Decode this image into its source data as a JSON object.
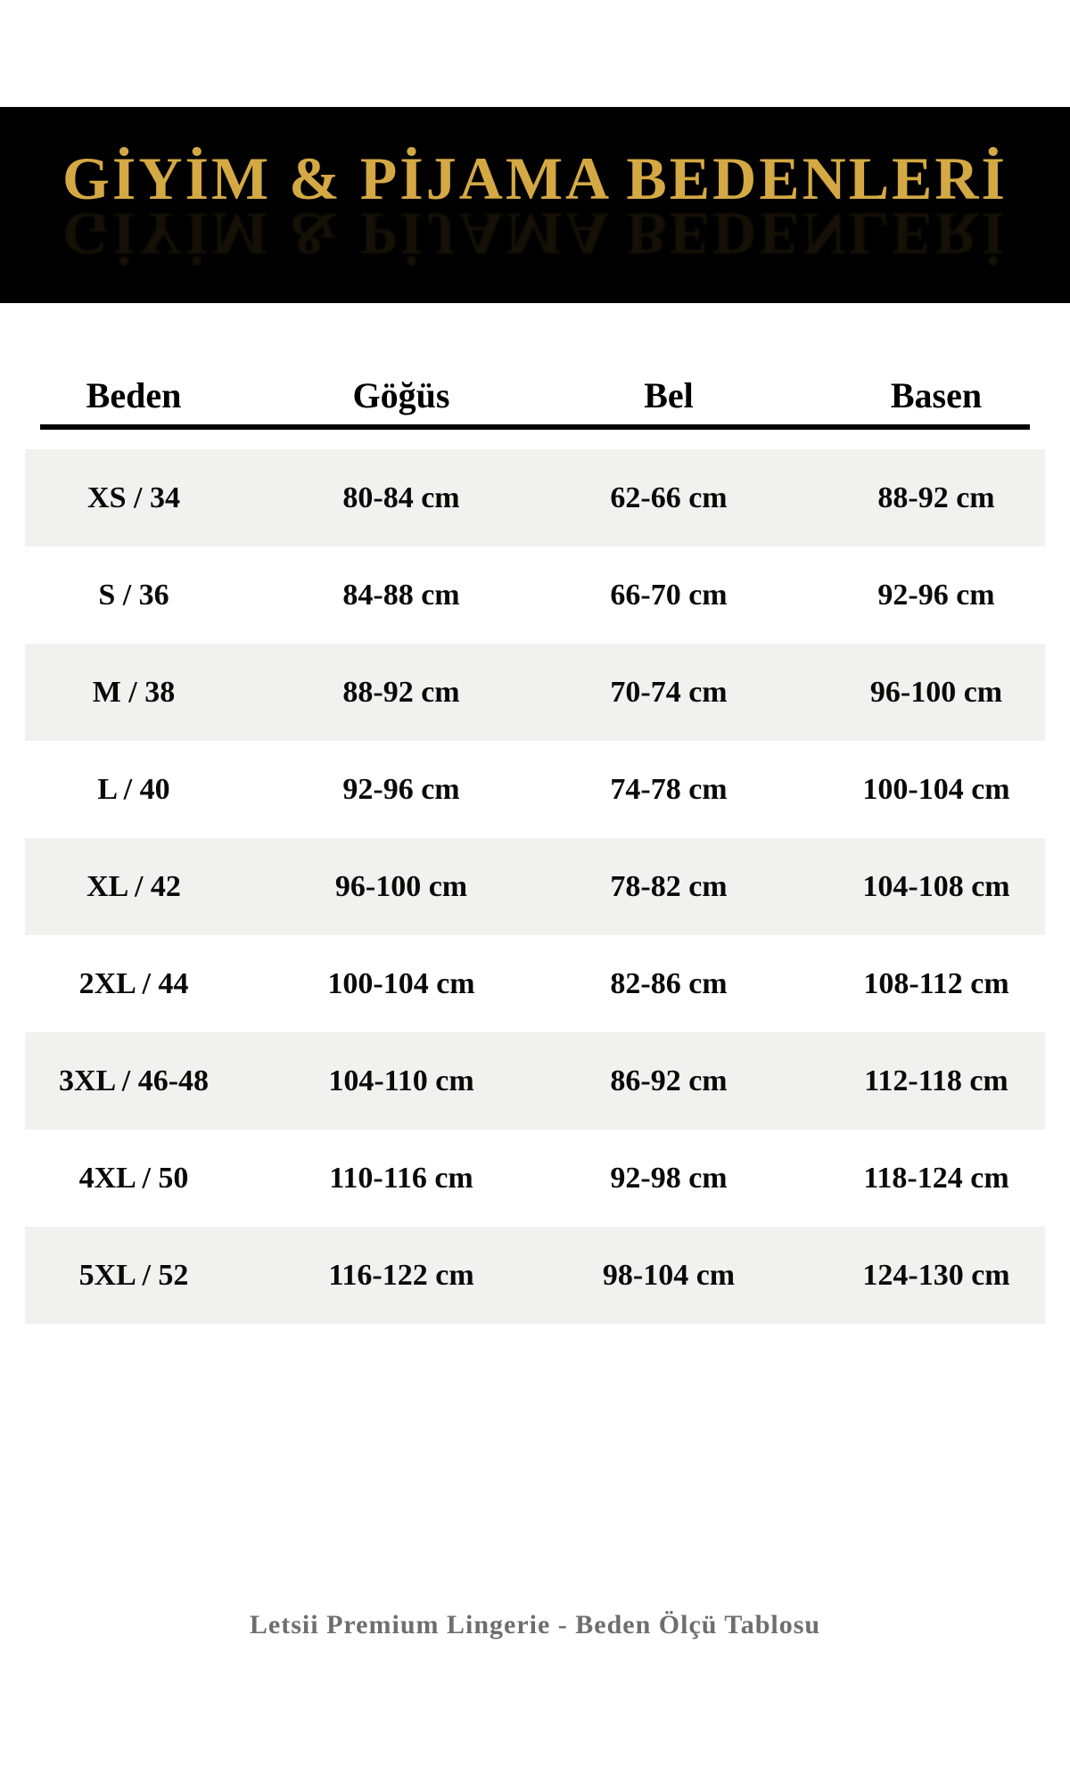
{
  "banner": {
    "title": "GİYİM & PİJAMA BEDENLERİ",
    "bg_color": "#000000",
    "title_color": "#d4a944"
  },
  "table": {
    "headers": [
      "Beden",
      "Göğüs",
      "Bel",
      "Basen"
    ],
    "stripe_color": "#f1f1ef",
    "rows": [
      {
        "size": "XS / 34",
        "chest": "80-84 cm",
        "waist": "62-66 cm",
        "hips": "88-92 cm"
      },
      {
        "size": "S / 36",
        "chest": "84-88 cm",
        "waist": "66-70 cm",
        "hips": "92-96 cm"
      },
      {
        "size": "M / 38",
        "chest": "88-92 cm",
        "waist": "70-74 cm",
        "hips": "96-100 cm"
      },
      {
        "size": "L / 40",
        "chest": "92-96 cm",
        "waist": "74-78 cm",
        "hips": "100-104 cm"
      },
      {
        "size": "XL / 42",
        "chest": "96-100 cm",
        "waist": "78-82 cm",
        "hips": "104-108 cm"
      },
      {
        "size": "2XL / 44",
        "chest": "100-104 cm",
        "waist": "82-86 cm",
        "hips": "108-112 cm"
      },
      {
        "size": "3XL / 46-48",
        "chest": "104-110 cm",
        "waist": "86-92 cm",
        "hips": "112-118 cm"
      },
      {
        "size": "4XL / 50",
        "chest": "110-116 cm",
        "waist": "92-98 cm",
        "hips": "118-124 cm"
      },
      {
        "size": "5XL / 52",
        "chest": "116-122 cm",
        "waist": "98-104 cm",
        "hips": "124-130 cm"
      }
    ]
  },
  "footer": {
    "text": "Letsii Premium Lingerie - Beden Ölçü Tablosu",
    "color": "#6e6e6e"
  },
  "chart_data": {
    "type": "table",
    "title": "GİYİM & PİJAMA BEDENLERİ",
    "columns": [
      "Beden",
      "Göğüs",
      "Bel",
      "Basen"
    ],
    "rows": [
      [
        "XS / 34",
        "80-84 cm",
        "62-66 cm",
        "88-92 cm"
      ],
      [
        "S / 36",
        "84-88 cm",
        "66-70 cm",
        "92-96 cm"
      ],
      [
        "M / 38",
        "88-92 cm",
        "70-74 cm",
        "96-100 cm"
      ],
      [
        "L / 40",
        "92-96 cm",
        "74-78 cm",
        "100-104 cm"
      ],
      [
        "XL / 42",
        "96-100 cm",
        "78-82 cm",
        "104-108 cm"
      ],
      [
        "2XL / 44",
        "100-104 cm",
        "82-86 cm",
        "108-112 cm"
      ],
      [
        "3XL / 46-48",
        "104-110 cm",
        "86-92 cm",
        "112-118 cm"
      ],
      [
        "4XL / 50",
        "110-116 cm",
        "92-98 cm",
        "118-124 cm"
      ],
      [
        "5XL / 52",
        "116-122 cm",
        "98-104 cm",
        "124-130 cm"
      ]
    ],
    "footer": "Letsii Premium Lingerie - Beden Ölçü Tablosu",
    "layout": {
      "striped_rows": "odd",
      "header_rule": true,
      "alignment": "center"
    }
  }
}
